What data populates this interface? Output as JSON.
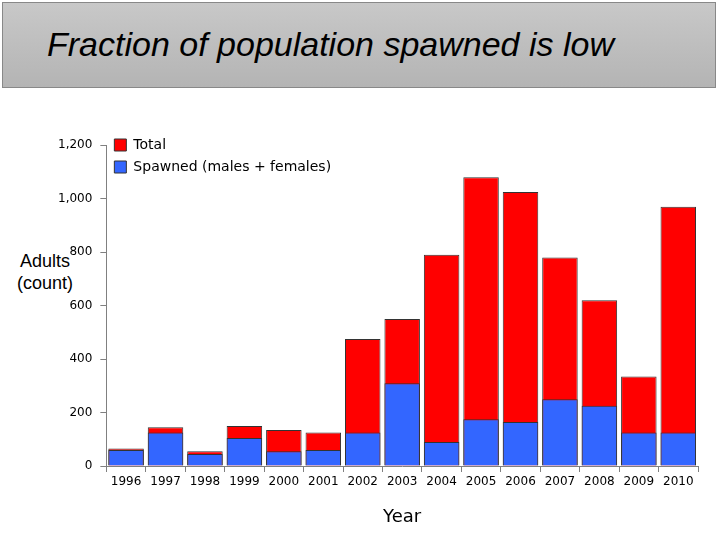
{
  "chart_data": {
    "type": "bar",
    "title": "Fraction of population spawned is low",
    "x_label": "Year",
    "y_label": "Adults (count)",
    "categories": [
      "1996",
      "1997",
      "1998",
      "1999",
      "2000",
      "2001",
      "2002",
      "2003",
      "2004",
      "2005",
      "2006",
      "2007",
      "2008",
      "2009",
      "2010"
    ],
    "series": [
      {
        "name": "Total",
        "color": "#ff0000",
        "values": [
          65,
          145,
          55,
          150,
          135,
          125,
          475,
          550,
          790,
          1080,
          1025,
          780,
          620,
          335,
          970
        ]
      },
      {
        "name": "Spawned (males + females)",
        "color": "#3366ff",
        "values": [
          60,
          125,
          45,
          105,
          55,
          60,
          125,
          310,
          90,
          175,
          165,
          250,
          225,
          125,
          125
        ]
      }
    ],
    "ylim": [
      0,
      1200
    ],
    "yticks": [
      0,
      200,
      400,
      600,
      800,
      1000,
      1200
    ],
    "grid": false,
    "stacked": false,
    "legend": "upper left"
  }
}
